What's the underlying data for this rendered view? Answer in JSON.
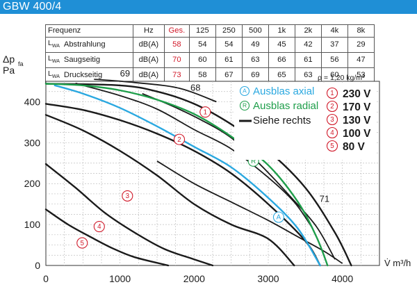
{
  "header": {
    "title": "GBW 400/4"
  },
  "table": {
    "header_label": "Frequenz",
    "header_unit": "Hz",
    "header_ges": "Ges.",
    "frequencies": [
      "125",
      "250",
      "500",
      "1k",
      "2k",
      "4k",
      "8k"
    ],
    "rows": [
      {
        "symbol": "L",
        "sub": "WA",
        "name": "Abstrahlung",
        "unit": "dB(A)",
        "ges": "58",
        "values": [
          "54",
          "54",
          "49",
          "45",
          "42",
          "37",
          "29"
        ]
      },
      {
        "symbol": "L",
        "sub": "WA",
        "name": "Saugseitig",
        "unit": "dB(A)",
        "ges": "70",
        "values": [
          "60",
          "61",
          "63",
          "66",
          "61",
          "56",
          "47"
        ]
      },
      {
        "symbol": "L",
        "sub": "WA",
        "name": "Druckseitig",
        "unit": "dB(A)",
        "ges": "73",
        "values": [
          "58",
          "67",
          "69",
          "65",
          "63",
          "60",
          "53"
        ]
      }
    ]
  },
  "density_note": "ρ = 1,20 kg/m³",
  "colors": {
    "accent": "#1f8fd6",
    "axial": "#2aa8e0",
    "radial": "#1e9e4a",
    "red": "#d11a2a",
    "black": "#1a1a1a"
  },
  "chart_data": {
    "type": "line",
    "xlabel": "V̇ m³/h",
    "ylabel_main": "Δp",
    "ylabel_sub": "fa",
    "ylabel_unit": "Pa",
    "xlim": [
      0,
      4500
    ],
    "ylim": [
      0,
      450
    ],
    "x_ticks": [
      0,
      1000,
      2000,
      3000,
      4000
    ],
    "y_ticks": [
      0,
      100,
      200,
      300,
      400
    ],
    "x_tick_labels": [
      "0",
      "1000",
      "2000",
      "3000",
      "4000"
    ],
    "y_tick_labels": [
      "0",
      "100",
      "200",
      "300",
      "400"
    ],
    "legend": {
      "items": [
        {
          "marker": "A",
          "text": "Ausblas axial",
          "style": "axial"
        },
        {
          "marker": "R",
          "text": "Ausblas radial",
          "style": "radial"
        },
        {
          "marker": "",
          "text": "Siehe rechts",
          "style": "line"
        }
      ],
      "voltages": [
        {
          "marker": "1",
          "text": "230 V"
        },
        {
          "marker": "2",
          "text": "170 V"
        },
        {
          "marker": "3",
          "text": "130 V"
        },
        {
          "marker": "4",
          "text": "100 V"
        },
        {
          "marker": "5",
          "text": "80 V"
        }
      ]
    },
    "series": [
      {
        "name": "230 V",
        "marker": "1",
        "style": "black",
        "points": [
          [
            0,
            444
          ],
          [
            1000,
            440
          ],
          [
            1500,
            425
          ],
          [
            2000,
            395
          ],
          [
            2500,
            345
          ],
          [
            3000,
            280
          ],
          [
            3500,
            190
          ],
          [
            3900,
            80
          ],
          [
            4120,
            0
          ]
        ],
        "label_at": [
          2150,
          375
        ]
      },
      {
        "name": "170 V",
        "marker": "2",
        "style": "black",
        "points": [
          [
            0,
            395
          ],
          [
            500,
            380
          ],
          [
            1000,
            355
          ],
          [
            1500,
            322
          ],
          [
            2000,
            280
          ],
          [
            2500,
            225
          ],
          [
            3000,
            150
          ],
          [
            3500,
            60
          ],
          [
            3700,
            0
          ]
        ],
        "label_at": [
          1800,
          308
        ]
      },
      {
        "name": "130 V",
        "marker": "3",
        "style": "black",
        "points": [
          [
            0,
            368
          ],
          [
            500,
            330
          ],
          [
            1000,
            280
          ],
          [
            1500,
            220
          ],
          [
            2000,
            150
          ],
          [
            2500,
            100
          ],
          [
            3000,
            65
          ],
          [
            3350,
            0
          ]
        ],
        "label_at": [
          1100,
          170
        ]
      },
      {
        "name": "100 V",
        "marker": "4",
        "style": "black",
        "points": [
          [
            0,
            248
          ],
          [
            400,
            190
          ],
          [
            800,
            128
          ],
          [
            1200,
            80
          ],
          [
            1600,
            40
          ],
          [
            2000,
            15
          ],
          [
            2250,
            0
          ]
        ],
        "label_at": [
          720,
          95
        ]
      },
      {
        "name": "80 V",
        "marker": "5",
        "style": "black",
        "points": [
          [
            0,
            137
          ],
          [
            300,
            100
          ],
          [
            600,
            70
          ],
          [
            900,
            42
          ],
          [
            1200,
            20
          ],
          [
            1650,
            0
          ]
        ],
        "label_at": [
          490,
          55
        ]
      },
      {
        "name": "Ausblas axial",
        "marker": "A",
        "style": "axial",
        "points": [
          [
            120,
            440
          ],
          [
            500,
            420
          ],
          [
            1000,
            385
          ],
          [
            1500,
            340
          ],
          [
            2000,
            290
          ],
          [
            2500,
            240
          ],
          [
            3000,
            165
          ],
          [
            3400,
            90
          ],
          [
            3700,
            0
          ]
        ],
        "label_at": [
          3140,
          118
        ]
      },
      {
        "name": "Ausblas radial",
        "marker": "R",
        "style": "radial",
        "points": [
          [
            0,
            444
          ],
          [
            500,
            440
          ],
          [
            1000,
            428
          ],
          [
            1500,
            405
          ],
          [
            2000,
            370
          ],
          [
            2500,
            315
          ],
          [
            3000,
            245
          ],
          [
            3400,
            155
          ],
          [
            3650,
            70
          ],
          [
            3800,
            0
          ]
        ],
        "label_at": [
          2800,
          255
        ]
      }
    ],
    "efficiency_lines": [
      {
        "label": "69",
        "points": [
          [
            650,
            455
          ],
          [
            1200,
            447
          ],
          [
            1800,
            433
          ],
          [
            2300,
            400
          ]
        ],
        "label_at": [
          1000,
          462
        ]
      },
      {
        "label": "68",
        "points": [
          [
            400,
            445
          ],
          [
            1000,
            415
          ],
          [
            1500,
            382
          ],
          [
            2000,
            332
          ],
          [
            2500,
            285
          ],
          [
            3000,
            215
          ],
          [
            3350,
            155
          ],
          [
            3600,
            90
          ]
        ],
        "label_at": [
          1950,
          427
        ]
      },
      {
        "label": "69",
        "points": [
          [
            1300,
            420
          ],
          [
            1700,
            390
          ],
          [
            2100,
            355
          ],
          [
            2500,
            312
          ],
          [
            2900,
            245
          ],
          [
            3300,
            168
          ],
          [
            3650,
            95
          ],
          [
            3900,
            15
          ]
        ],
        "label_at": [
          2700,
          335
        ]
      },
      {
        "label": "71",
        "points": [
          [
            1500,
            255
          ],
          [
            2000,
            200
          ],
          [
            2500,
            155
          ],
          [
            3000,
            110
          ],
          [
            3400,
            70
          ],
          [
            3750,
            35
          ],
          [
            4000,
            5
          ]
        ],
        "label_at": [
          3690,
          155
        ]
      }
    ]
  }
}
